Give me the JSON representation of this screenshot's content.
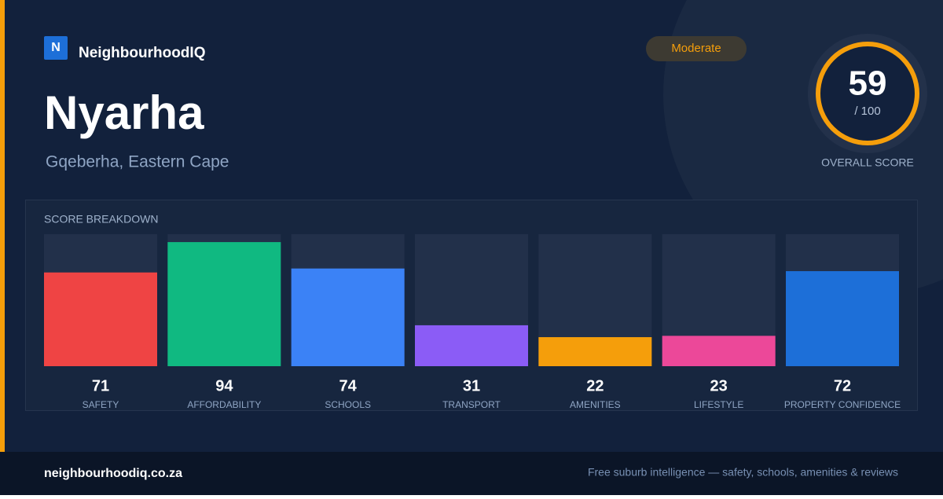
{
  "brand": {
    "logo": "N",
    "name": "NeighbourhoodIQ"
  },
  "header": {
    "title": "Nyarha",
    "subtitle": "Gqeberha, Eastern Cape",
    "badge": "Moderate"
  },
  "overall": {
    "score": 59,
    "out_of": {
      "value": 100,
      "label": "/ 100"
    },
    "label": "OVERALL SCORE"
  },
  "breakdown": {
    "title": "SCORE BREAKDOWN",
    "categories": [
      "SAFETY",
      "AFFORDABILITY",
      "SCHOOLS",
      "TRANSPORT",
      "AMENITIES",
      "LIFESTYLE",
      "PROPERTY CONFIDENCE"
    ],
    "values": [
      71,
      94,
      74,
      31,
      22,
      23,
      72
    ],
    "colors": [
      "#ef4444",
      "#10b981",
      "#3b82f6",
      "#8b5cf6",
      "#f59e0b",
      "#ec4899",
      "#1d6fd8"
    ]
  },
  "footer": {
    "site": "neighbourhoodiq.co.za",
    "tagline": "Free suburb intelligence — safety, schools, amenities & reviews"
  }
}
